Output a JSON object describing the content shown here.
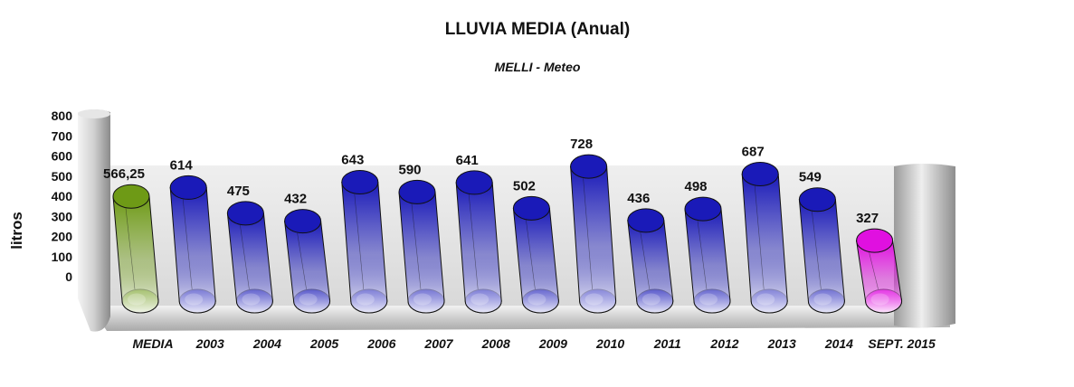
{
  "chart_data": {
    "type": "bar",
    "title": "LLUVIA MEDIA (Anual)",
    "subtitle": "MELLI - Meteo",
    "ylabel": "litros",
    "xlabel": "",
    "ylim": [
      0,
      800
    ],
    "yticks": [
      "800",
      "700",
      "600",
      "500",
      "400",
      "300",
      "200",
      "100",
      "0"
    ],
    "categories": [
      "MEDIA",
      "2003",
      "2004",
      "2005",
      "2006",
      "2007",
      "2008",
      "2009",
      "2010",
      "2011",
      "2012",
      "2013",
      "2014",
      "SEPT. 2015"
    ],
    "values": [
      566.25,
      614,
      475,
      432,
      643,
      590,
      641,
      502,
      728,
      436,
      498,
      687,
      549,
      327
    ],
    "value_labels": [
      "566,25",
      "614",
      "475",
      "432",
      "643",
      "590",
      "641",
      "502",
      "728",
      "436",
      "498",
      "687",
      "549",
      "327"
    ],
    "bar_colors": [
      "#6e9a16",
      "#1a1ab8",
      "#1a1ab8",
      "#1a1ab8",
      "#1a1ab8",
      "#1a1ab8",
      "#1a1ab8",
      "#1a1ab8",
      "#1a1ab8",
      "#1a1ab8",
      "#1a1ab8",
      "#1a1ab8",
      "#1a1ab8",
      "#e010e0"
    ],
    "grid": false,
    "legend": "none"
  }
}
